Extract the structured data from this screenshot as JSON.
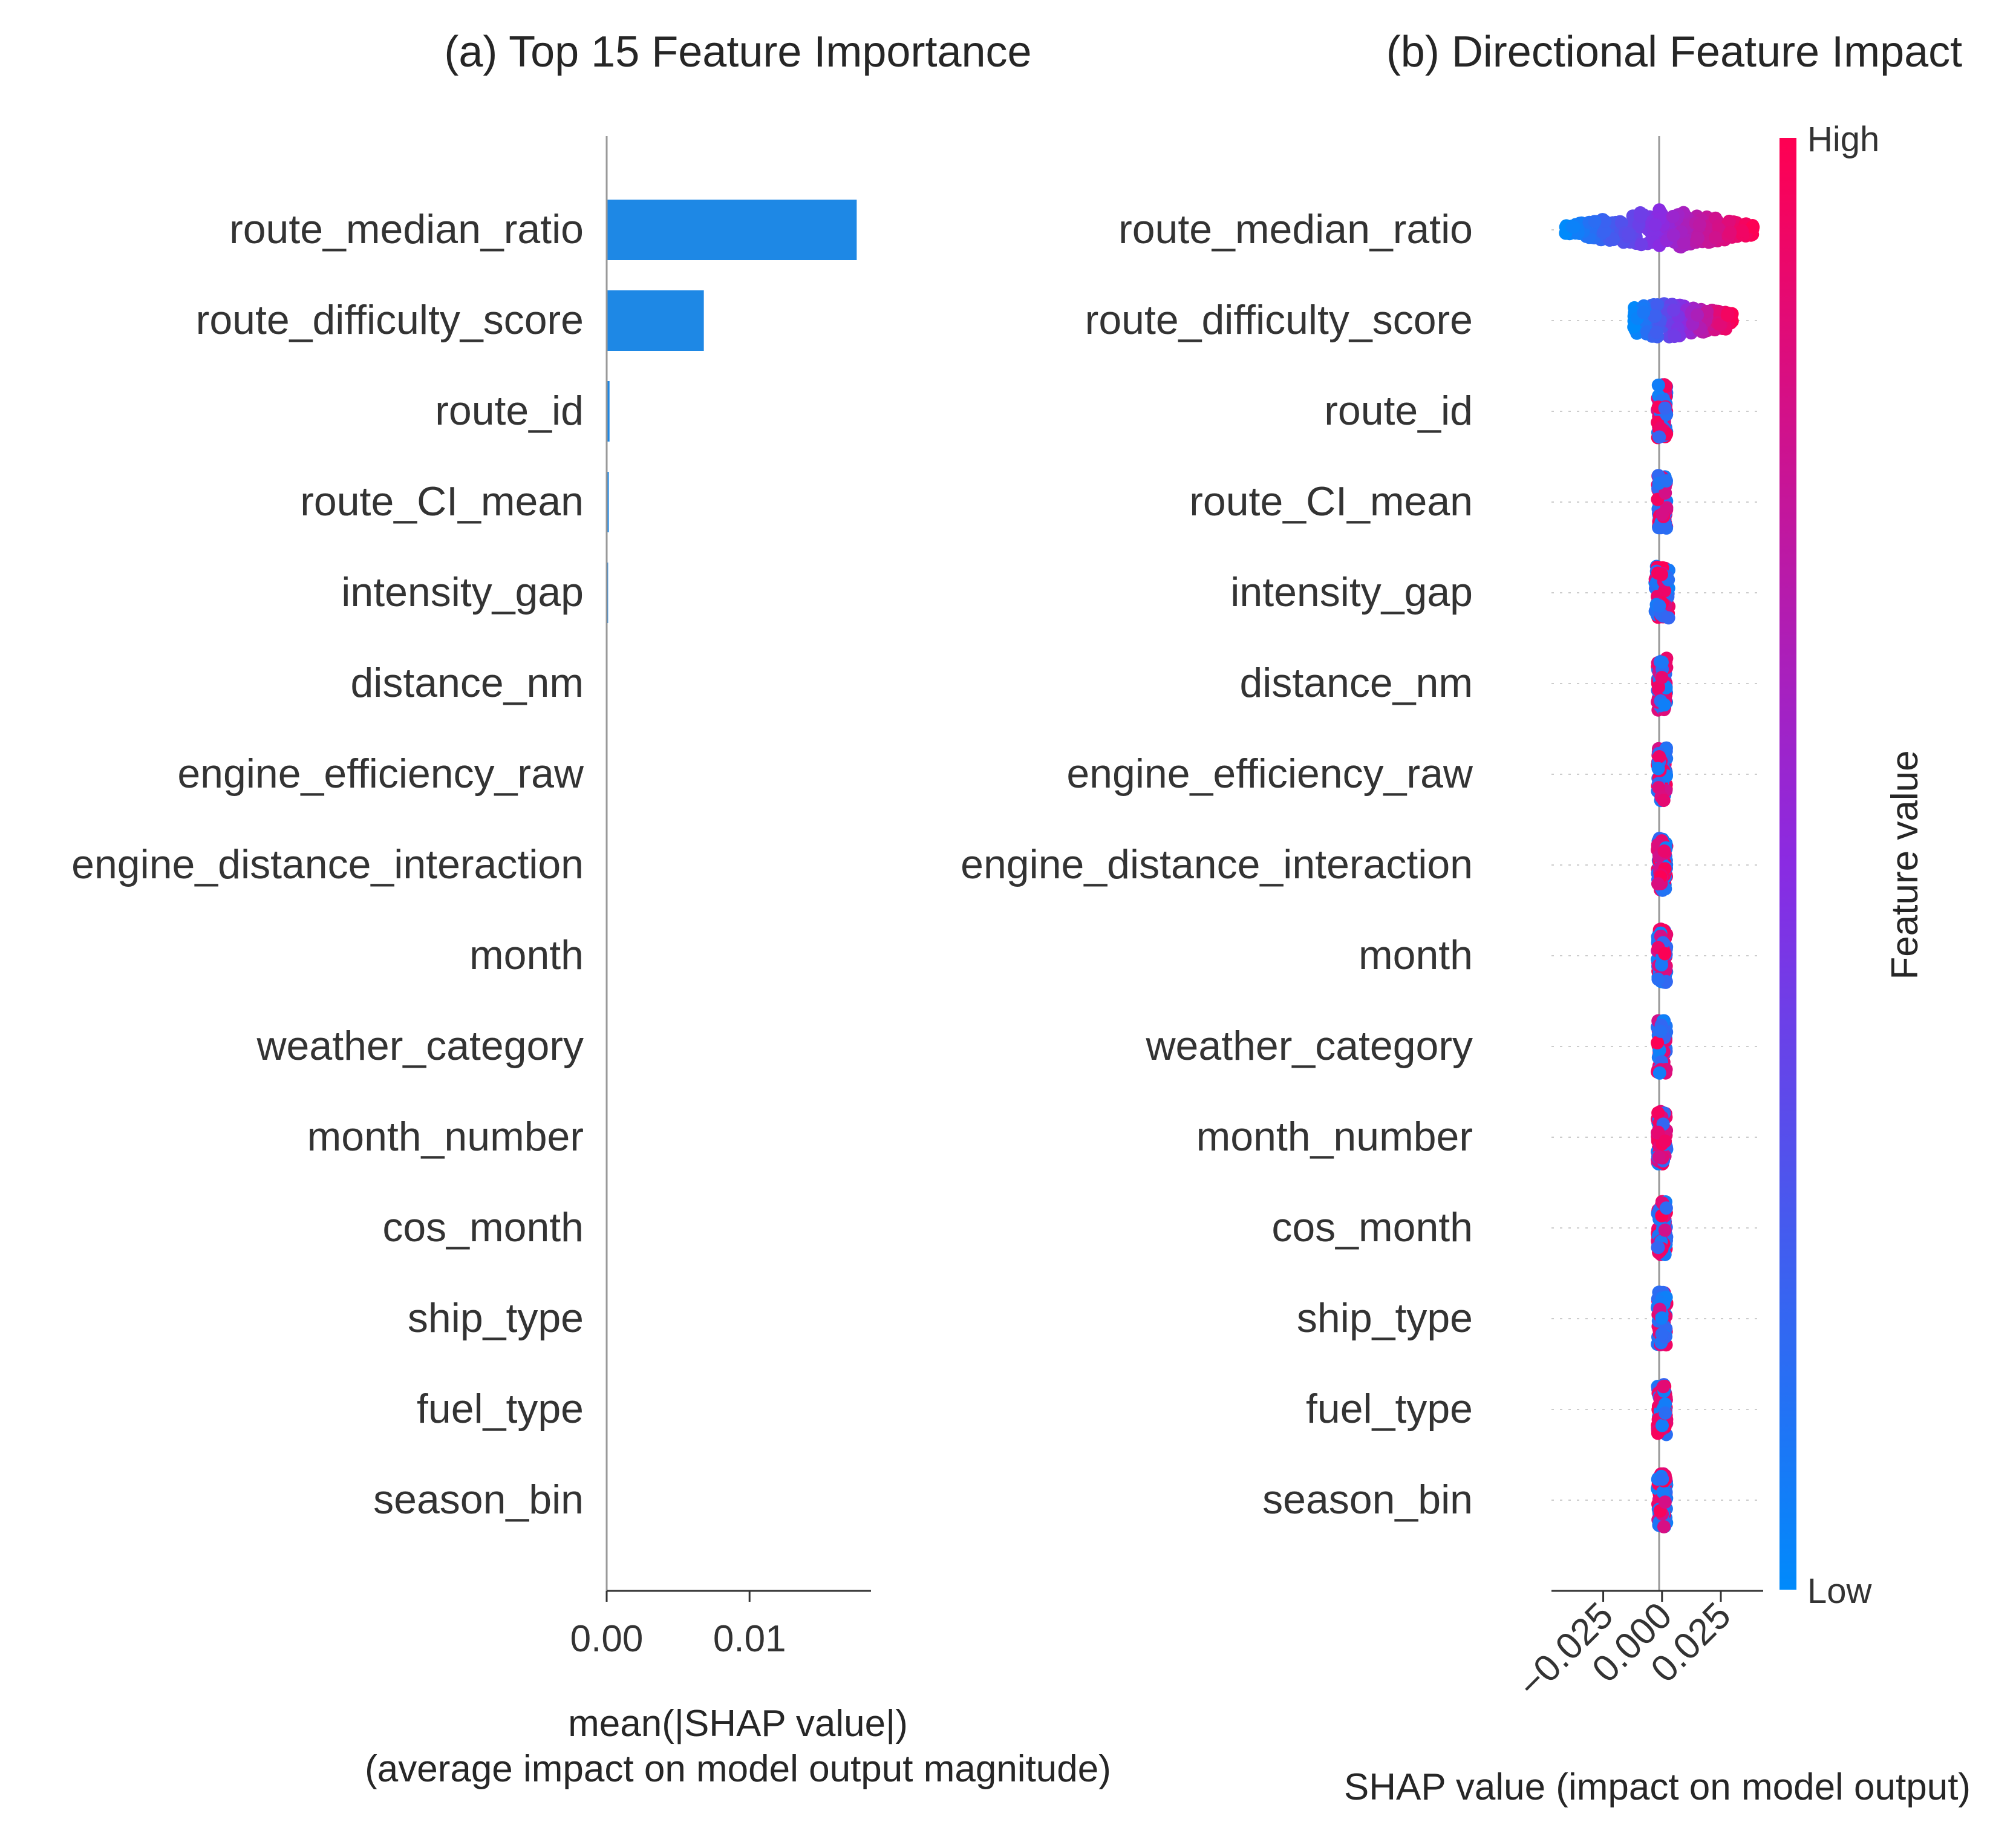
{
  "colors": {
    "bar": "#1E88E5",
    "low": "#008AFB",
    "mid": "#8A2BE2",
    "high": "#FF0052",
    "axis": "#999999",
    "guide": "#cccccc"
  },
  "chart_data": [
    {
      "type": "bar",
      "orientation": "horizontal",
      "title": "(a) Top 15 Feature Importance",
      "xlabel": "mean(|SHAP value|)",
      "xlabel2": "(average impact on model output magnitude)",
      "xlim": [
        0,
        0.0185
      ],
      "xticks": [
        0.0,
        0.01
      ],
      "xtick_labels": [
        "0.00",
        "0.01"
      ],
      "categories": [
        "route_median_ratio",
        "route_difficulty_score",
        "route_id",
        "route_CI_mean",
        "intensity_gap",
        "distance_nm",
        "engine_efficiency_raw",
        "engine_distance_interaction",
        "month",
        "weather_category",
        "month_number",
        "cos_month",
        "ship_type",
        "fuel_type",
        "season_bin"
      ],
      "values": [
        0.0175,
        0.0068,
        0.0002,
        0.00015,
        0.0001,
        3e-05,
        2e-05,
        2e-05,
        1e-05,
        1e-05,
        1e-05,
        1e-05,
        1e-05,
        1e-05,
        1e-05
      ]
    },
    {
      "type": "scatter",
      "subtype": "beeswarm",
      "title": "(b) Directional Feature Impact",
      "xlabel": "SHAP value (impact on model output)",
      "xlim": [
        -0.047,
        0.043
      ],
      "xticks": [
        -0.025,
        0.0,
        0.025
      ],
      "xtick_labels": [
        "−0.025",
        "0.000",
        "0.025"
      ],
      "colorbar": {
        "label": "Feature value",
        "high": "High",
        "low": "Low"
      },
      "categories": [
        "route_median_ratio",
        "route_difficulty_score",
        "route_id",
        "route_CI_mean",
        "intensity_gap",
        "distance_nm",
        "engine_efficiency_raw",
        "engine_distance_interaction",
        "month",
        "weather_category",
        "month_number",
        "cos_month",
        "ship_type",
        "fuel_type",
        "season_bin"
      ],
      "spread": [
        {
          "min": -0.041,
          "max": 0.039
        },
        {
          "min": -0.012,
          "max": 0.03
        },
        {
          "min": -0.002,
          "max": 0.002
        },
        {
          "min": -0.002,
          "max": 0.002
        },
        {
          "min": -0.003,
          "max": 0.003
        },
        {
          "min": -0.002,
          "max": 0.002
        },
        {
          "min": -0.002,
          "max": 0.002
        },
        {
          "min": -0.002,
          "max": 0.002
        },
        {
          "min": -0.002,
          "max": 0.002
        },
        {
          "min": -0.002,
          "max": 0.002
        },
        {
          "min": -0.002,
          "max": 0.002
        },
        {
          "min": -0.002,
          "max": 0.002
        },
        {
          "min": -0.002,
          "max": 0.002
        },
        {
          "min": -0.002,
          "max": 0.002
        },
        {
          "min": -0.002,
          "max": 0.002
        }
      ]
    }
  ]
}
